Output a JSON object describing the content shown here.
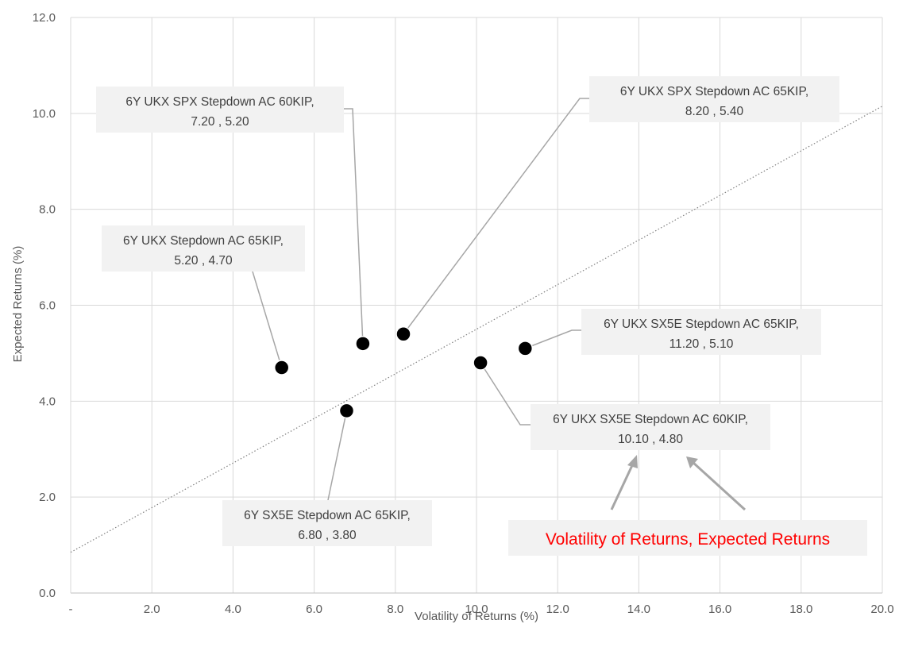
{
  "chart_data": {
    "type": "scatter",
    "title": "",
    "xlabel": "Volatility of Returns (%)",
    "ylabel": "Expected Returns (%)",
    "xlim": [
      0,
      20
    ],
    "ylim": [
      0,
      12
    ],
    "x_ticks": [
      {
        "value": 0,
        "label": "-"
      },
      {
        "value": 2,
        "label": "2.0"
      },
      {
        "value": 4,
        "label": "4.0"
      },
      {
        "value": 6,
        "label": "6.0"
      },
      {
        "value": 8,
        "label": "8.0"
      },
      {
        "value": 10,
        "label": "10.0"
      },
      {
        "value": 12,
        "label": "12.0"
      },
      {
        "value": 14,
        "label": "14.0"
      },
      {
        "value": 16,
        "label": "16.0"
      },
      {
        "value": 18,
        "label": "18.0"
      },
      {
        "value": 20,
        "label": "20.0"
      }
    ],
    "y_ticks": [
      {
        "value": 0,
        "label": "0.0"
      },
      {
        "value": 2,
        "label": "2.0"
      },
      {
        "value": 4,
        "label": "4.0"
      },
      {
        "value": 6,
        "label": "6.0"
      },
      {
        "value": 8,
        "label": "8.0"
      },
      {
        "value": 10,
        "label": "10.0"
      },
      {
        "value": 12,
        "label": "12.0"
      }
    ],
    "grid": true,
    "legend": "none",
    "point_color": "#000000",
    "trendline": {
      "style": "dotted",
      "color": "#808080",
      "x": [
        0,
        20
      ],
      "y": [
        0.85,
        10.15
      ]
    },
    "points": [
      {
        "x": 5.2,
        "y": 4.7,
        "name": "6Y UKX Stepdown AC 65KIP,",
        "coords": "5.20 , 4.70"
      },
      {
        "x": 7.2,
        "y": 5.2,
        "name": "6Y UKX SPX Stepdown AC 60KIP,",
        "coords": "7.20 , 5.20"
      },
      {
        "x": 8.2,
        "y": 5.4,
        "name": "6Y UKX SPX Stepdown AC 65KIP,",
        "coords": "8.20 , 5.40"
      },
      {
        "x": 6.8,
        "y": 3.8,
        "name": "6Y SX5E Stepdown AC 65KIP,",
        "coords": "6.80 , 3.80"
      },
      {
        "x": 10.1,
        "y": 4.8,
        "name": "6Y UKX SX5E Stepdown AC 60KIP,",
        "coords": "10.10 , 4.80"
      },
      {
        "x": 11.2,
        "y": 5.1,
        "name": "6Y UKX SX5E Stepdown AC 65KIP,",
        "coords": "11.20 , 5.10"
      }
    ],
    "annotation": {
      "text": "Volatility of Returns, Expected Returns",
      "color": "#ff0000"
    }
  }
}
